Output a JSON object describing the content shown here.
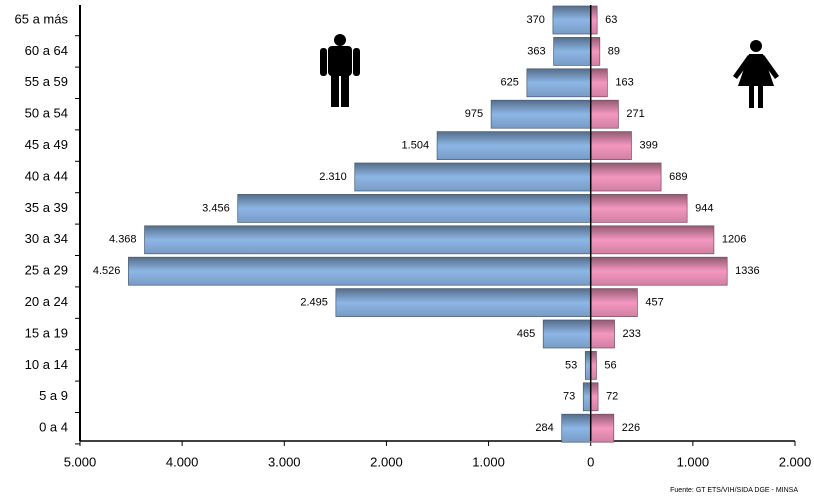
{
  "chart_data": {
    "type": "pyramid",
    "categories": [
      "65 a más",
      "60 a 64",
      "55 a 59",
      "50 a 54",
      "45 a 49",
      "40 a 44",
      "35 a 39",
      "30 a 34",
      "25 a 29",
      "20 a 24",
      "15 a 19",
      "10 a 14",
      "5 a 9",
      "0 a 4"
    ],
    "series": [
      {
        "color": "#8db6e6",
        "side": "left",
        "values": [
          370,
          363,
          625,
          975,
          1504,
          2310,
          3456,
          4368,
          4526,
          2495,
          465,
          53,
          73,
          284
        ],
        "value_labels": [
          "370",
          "363",
          "625",
          "975",
          "1.504",
          "2.310",
          "3.456",
          "4.368",
          "4.526",
          "2.495",
          "465",
          "53",
          "73",
          "284"
        ]
      },
      {
        "color": "#f497bf",
        "side": "right",
        "values": [
          63,
          89,
          163,
          271,
          399,
          689,
          944,
          1206,
          1336,
          457,
          233,
          56,
          72,
          226
        ]
      }
    ],
    "xlim": [
      -5000,
      2000
    ],
    "xticks": [
      {
        "value": -5000,
        "label": "5.000"
      },
      {
        "value": -4000,
        "label": "4.000"
      },
      {
        "value": -3000,
        "label": "3.000"
      },
      {
        "value": -2000,
        "label": "2.000"
      },
      {
        "value": -1000,
        "label": "1.000"
      },
      0,
      {
        "value": 1000,
        "label": "1.000"
      },
      {
        "value": 2000,
        "label": "2.000"
      }
    ],
    "source": "Fuente: GT ETS/VIH/SIDA DGE - MINSA"
  }
}
